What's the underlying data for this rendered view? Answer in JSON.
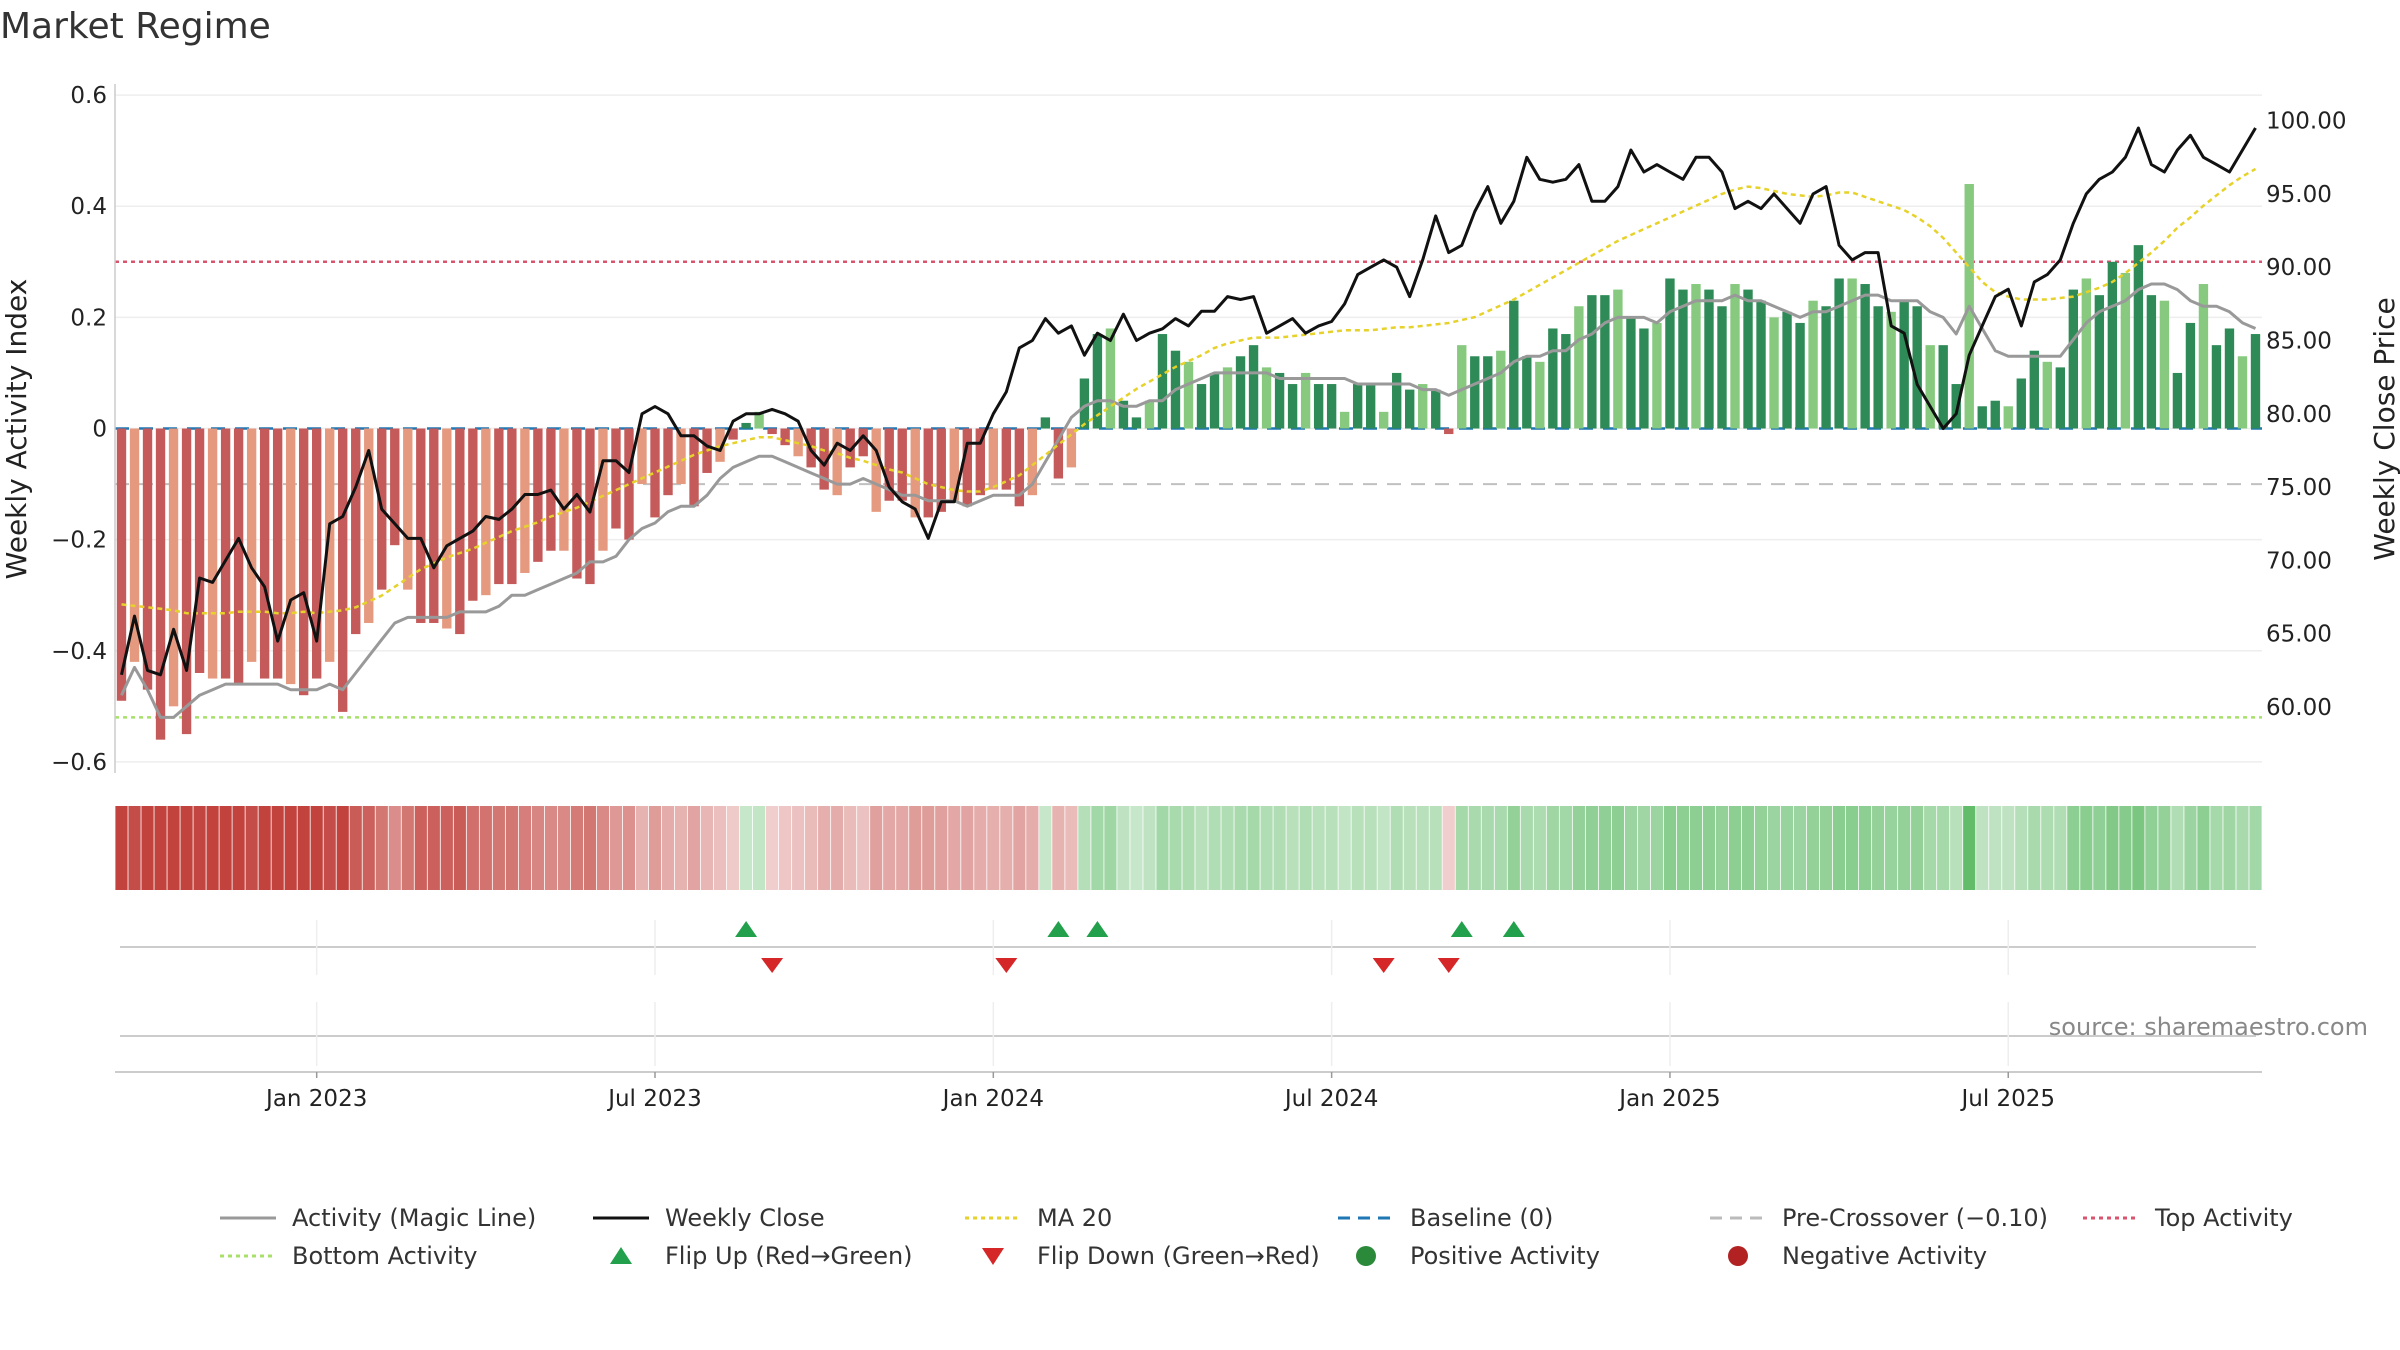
{
  "title": "Market Regime",
  "source": "source: sharemaestro.com",
  "axes": {
    "left_label": "Weekly Activity Index",
    "right_label": "Weekly Close Price",
    "left_ticks": [
      {
        "v": 0.6,
        "t": "0.6"
      },
      {
        "v": 0.4,
        "t": "0.4"
      },
      {
        "v": 0.2,
        "t": "0.2"
      },
      {
        "v": 0,
        "t": "0"
      },
      {
        "v": -0.2,
        "t": "−0.2"
      },
      {
        "v": -0.4,
        "t": "−0.4"
      },
      {
        "v": -0.6,
        "t": "−0.6"
      }
    ],
    "right_ticks": [
      {
        "v": 100,
        "t": "100.00"
      },
      {
        "v": 95,
        "t": "95.00"
      },
      {
        "v": 90,
        "t": "90.00"
      },
      {
        "v": 85,
        "t": "85.00"
      },
      {
        "v": 80,
        "t": "80.00"
      },
      {
        "v": 75,
        "t": "75.00"
      },
      {
        "v": 70,
        "t": "70.00"
      },
      {
        "v": 65,
        "t": "65.00"
      },
      {
        "v": 60,
        "t": "60.00"
      }
    ],
    "x_ticks": [
      {
        "t": "Jan 2023",
        "w": 15
      },
      {
        "t": "Jul 2023",
        "w": 41
      },
      {
        "t": "Jan 2024",
        "w": 67
      },
      {
        "t": "Jul 2024",
        "w": 93
      },
      {
        "t": "Jan 2025",
        "w": 119
      },
      {
        "t": "Jul 2025",
        "w": 145
      }
    ]
  },
  "legend": [
    {
      "label": "Activity (Magic Line)",
      "kind": "line",
      "color": "#999999",
      "dash": ""
    },
    {
      "label": "Weekly Close",
      "kind": "line",
      "color": "#111111",
      "dash": ""
    },
    {
      "label": "MA 20",
      "kind": "line",
      "color": "#e6d22a",
      "dash": "4,4"
    },
    {
      "label": "Baseline (0)",
      "kind": "line",
      "color": "#1f77b4",
      "dash": "12,8"
    },
    {
      "label": "Pre-Crossover (−0.10)",
      "kind": "line",
      "color": "#bbbbbb",
      "dash": "12,8"
    },
    {
      "label": "Top Activity",
      "kind": "line",
      "color": "#d9546e",
      "dash": "4,4"
    },
    {
      "label": "Bottom Activity",
      "kind": "line",
      "color": "#a8e06a",
      "dash": "4,4"
    },
    {
      "label": "Flip Up (Red→Green)",
      "kind": "tri-up",
      "color": "#22a04b",
      "dash": ""
    },
    {
      "label": "Flip Down (Green→Red)",
      "kind": "tri-down",
      "color": "#d62728",
      "dash": ""
    },
    {
      "label": "Positive Activity",
      "kind": "dot",
      "color": "#2a8a3a",
      "dash": ""
    },
    {
      "label": "Negative Activity",
      "kind": "dot",
      "color": "#b22222",
      "dash": ""
    }
  ],
  "chart_data": {
    "type": "bar",
    "frequency": "weekly",
    "x_start": "2022-10-31",
    "activity_ylim": [
      -0.62,
      0.62
    ],
    "price_ylim": [
      55.5,
      102.5
    ],
    "reference_lines": {
      "baseline": 0,
      "pre_crossover": -0.1,
      "top_activity": 0.3,
      "bottom_activity": -0.52
    },
    "activity": [
      -0.49,
      -0.42,
      -0.47,
      -0.56,
      -0.5,
      -0.55,
      -0.44,
      -0.45,
      -0.45,
      -0.46,
      -0.42,
      -0.45,
      -0.45,
      -0.46,
      -0.48,
      -0.45,
      -0.42,
      -0.51,
      -0.37,
      -0.35,
      -0.29,
      -0.21,
      -0.29,
      -0.35,
      -0.35,
      -0.36,
      -0.37,
      -0.31,
      -0.3,
      -0.28,
      -0.28,
      -0.26,
      -0.24,
      -0.22,
      -0.22,
      -0.27,
      -0.28,
      -0.22,
      -0.18,
      -0.2,
      -0.1,
      -0.16,
      -0.12,
      -0.1,
      -0.14,
      -0.08,
      -0.06,
      -0.02,
      0.01,
      0.03,
      -0.01,
      -0.03,
      -0.05,
      -0.07,
      -0.11,
      -0.12,
      -0.07,
      -0.05,
      -0.15,
      -0.13,
      -0.13,
      -0.16,
      -0.16,
      -0.15,
      -0.13,
      -0.14,
      -0.12,
      -0.11,
      -0.11,
      -0.14,
      -0.12,
      0.02,
      -0.09,
      -0.07,
      0.09,
      0.17,
      0.18,
      0.05,
      0.02,
      0.05,
      0.17,
      0.14,
      0.12,
      0.08,
      0.1,
      0.11,
      0.13,
      0.15,
      0.11,
      0.1,
      0.08,
      0.1,
      0.08,
      0.08,
      0.03,
      0.08,
      0.08,
      0.03,
      0.1,
      0.07,
      0.08,
      0.07,
      -0.01,
      0.15,
      0.13,
      0.13,
      0.14,
      0.23,
      0.13,
      0.12,
      0.18,
      0.17,
      0.22,
      0.24,
      0.24,
      0.25,
      0.2,
      0.18,
      0.19,
      0.27,
      0.25,
      0.26,
      0.25,
      0.22,
      0.26,
      0.25,
      0.23,
      0.2,
      0.21,
      0.19,
      0.23,
      0.22,
      0.27,
      0.27,
      0.26,
      0.22,
      0.21,
      0.23,
      0.22,
      0.15,
      0.15,
      0.08,
      0.44,
      0.04,
      0.05,
      0.04,
      0.09,
      0.14,
      0.12,
      0.11,
      0.25,
      0.27,
      0.24,
      0.3,
      0.28,
      0.33,
      0.24,
      0.23,
      0.1,
      0.19,
      0.26,
      0.15,
      0.18,
      0.13,
      0.17
    ],
    "magic_line": [
      -0.48,
      -0.43,
      -0.47,
      -0.52,
      -0.52,
      -0.5,
      -0.48,
      -0.47,
      -0.46,
      -0.46,
      -0.46,
      -0.46,
      -0.46,
      -0.47,
      -0.47,
      -0.47,
      -0.46,
      -0.47,
      -0.44,
      -0.41,
      -0.38,
      -0.35,
      -0.34,
      -0.34,
      -0.34,
      -0.34,
      -0.33,
      -0.33,
      -0.33,
      -0.32,
      -0.3,
      -0.3,
      -0.29,
      -0.28,
      -0.27,
      -0.26,
      -0.24,
      -0.24,
      -0.23,
      -0.2,
      -0.18,
      -0.17,
      -0.15,
      -0.14,
      -0.14,
      -0.12,
      -0.09,
      -0.07,
      -0.06,
      -0.05,
      -0.05,
      -0.06,
      -0.07,
      -0.08,
      -0.09,
      -0.1,
      -0.1,
      -0.09,
      -0.1,
      -0.11,
      -0.12,
      -0.12,
      -0.13,
      -0.13,
      -0.13,
      -0.14,
      -0.13,
      -0.12,
      -0.12,
      -0.12,
      -0.1,
      -0.06,
      -0.02,
      0.02,
      0.04,
      0.05,
      0.05,
      0.04,
      0.04,
      0.05,
      0.05,
      0.07,
      0.08,
      0.09,
      0.1,
      0.1,
      0.1,
      0.1,
      0.1,
      0.09,
      0.09,
      0.09,
      0.09,
      0.09,
      0.09,
      0.08,
      0.08,
      0.08,
      0.08,
      0.08,
      0.07,
      0.07,
      0.06,
      0.07,
      0.08,
      0.09,
      0.1,
      0.12,
      0.13,
      0.13,
      0.14,
      0.14,
      0.16,
      0.17,
      0.19,
      0.2,
      0.2,
      0.2,
      0.19,
      0.21,
      0.22,
      0.23,
      0.23,
      0.23,
      0.24,
      0.23,
      0.23,
      0.22,
      0.21,
      0.2,
      0.21,
      0.21,
      0.22,
      0.23,
      0.24,
      0.24,
      0.23,
      0.23,
      0.23,
      0.21,
      0.2,
      0.17,
      0.22,
      0.18,
      0.14,
      0.13,
      0.13,
      0.13,
      0.13,
      0.13,
      0.16,
      0.19,
      0.21,
      0.22,
      0.23,
      0.25,
      0.26,
      0.26,
      0.25,
      0.23,
      0.22,
      0.22,
      0.21,
      0.19,
      0.18
    ],
    "weekly_close": [
      62.2,
      66.2,
      62.5,
      62.2,
      65.3,
      62.5,
      68.8,
      68.5,
      70.0,
      71.5,
      69.5,
      68.2,
      64.5,
      67.3,
      67.8,
      64.5,
      72.5,
      73.0,
      75.0,
      77.5,
      73.5,
      72.5,
      71.5,
      71.5,
      69.5,
      71.0,
      71.5,
      72.0,
      73.0,
      72.8,
      73.5,
      74.5,
      74.5,
      74.8,
      73.5,
      74.5,
      73.3,
      76.8,
      76.8,
      76.0,
      80.0,
      80.5,
      80.0,
      78.5,
      78.5,
      77.8,
      77.5,
      79.5,
      80.0,
      80.0,
      80.3,
      80.0,
      79.5,
      77.5,
      76.5,
      78.0,
      77.5,
      78.5,
      77.5,
      75.0,
      74.0,
      73.5,
      71.5,
      74.0,
      74.0,
      78.0,
      78.0,
      80.0,
      81.5,
      84.5,
      85.0,
      86.5,
      85.5,
      86.0,
      84.0,
      85.5,
      85.0,
      86.8,
      85.0,
      85.5,
      85.8,
      86.5,
      86.0,
      87.0,
      87.0,
      88.0,
      87.8,
      88.0,
      85.5,
      86.0,
      86.5,
      85.5,
      86.0,
      86.3,
      87.5,
      89.5,
      90.0,
      90.5,
      90.0,
      88.0,
      90.5,
      93.5,
      91.0,
      91.5,
      93.8,
      95.5,
      93.0,
      94.5,
      97.5,
      96.0,
      95.8,
      96.0,
      97.0,
      94.5,
      94.5,
      95.5,
      98.0,
      96.5,
      97.0,
      96.5,
      96.0,
      97.5,
      97.5,
      96.5,
      94.0,
      94.5,
      94.0,
      95.0,
      94.0,
      93.0,
      95.0,
      95.5,
      91.5,
      90.5,
      91.0,
      91.0,
      86.0,
      85.5,
      82.0,
      80.5,
      79.0,
      80.0,
      84.0,
      86.0,
      88.0,
      88.5,
      86.0,
      89.0,
      89.5,
      90.5,
      93.0,
      95.0,
      96.0,
      96.5,
      97.5,
      99.5,
      97.0,
      96.5,
      98.0,
      99.0,
      97.5,
      97.0,
      96.5,
      98.0,
      99.5
    ],
    "ma20": [
      67.0,
      66.9,
      66.8,
      66.7,
      66.6,
      66.4,
      66.4,
      66.4,
      66.4,
      66.5,
      66.5,
      66.5,
      66.4,
      66.4,
      66.5,
      66.4,
      66.5,
      66.6,
      66.8,
      67.2,
      67.6,
      68.2,
      68.8,
      69.4,
      69.8,
      70.2,
      70.5,
      70.8,
      71.2,
      71.6,
      72.0,
      72.3,
      72.6,
      73.0,
      73.3,
      73.6,
      74.0,
      74.4,
      74.8,
      75.2,
      75.6,
      76.0,
      76.4,
      76.8,
      77.2,
      77.5,
      77.8,
      78.0,
      78.2,
      78.4,
      78.4,
      78.2,
      78.0,
      77.8,
      77.5,
      77.3,
      77.0,
      76.8,
      76.5,
      76.2,
      76.0,
      75.6,
      75.2,
      75.0,
      74.8,
      74.7,
      74.7,
      75.0,
      75.4,
      75.8,
      76.5,
      77.2,
      77.9,
      78.6,
      79.3,
      79.9,
      80.5,
      81.1,
      81.7,
      82.2,
      82.7,
      83.2,
      83.6,
      84.0,
      84.5,
      84.8,
      85.0,
      85.2,
      85.2,
      85.2,
      85.3,
      85.4,
      85.5,
      85.6,
      85.7,
      85.7,
      85.7,
      85.8,
      85.9,
      85.9,
      86.0,
      86.1,
      86.2,
      86.4,
      86.6,
      87.0,
      87.4,
      87.8,
      88.3,
      88.8,
      89.3,
      89.8,
      90.3,
      90.8,
      91.3,
      91.8,
      92.2,
      92.6,
      93.0,
      93.4,
      93.8,
      94.2,
      94.6,
      95.0,
      95.3,
      95.5,
      95.4,
      95.2,
      95.0,
      94.9,
      94.8,
      94.9,
      95.1,
      95.1,
      94.8,
      94.5,
      94.2,
      93.9,
      93.4,
      92.8,
      92.0,
      91.0,
      90.0,
      89.0,
      88.3,
      88.0,
      87.8,
      87.8,
      87.8,
      87.9,
      88.0,
      88.3,
      88.6,
      89.0,
      89.6,
      90.3,
      91.0,
      91.8,
      92.7,
      93.4,
      94.2,
      94.9,
      95.6,
      96.2,
      96.7
    ],
    "flip_up_weeks": [
      48,
      72,
      75,
      103,
      107
    ],
    "flip_down_weeks": [
      50,
      68,
      97,
      102
    ]
  }
}
